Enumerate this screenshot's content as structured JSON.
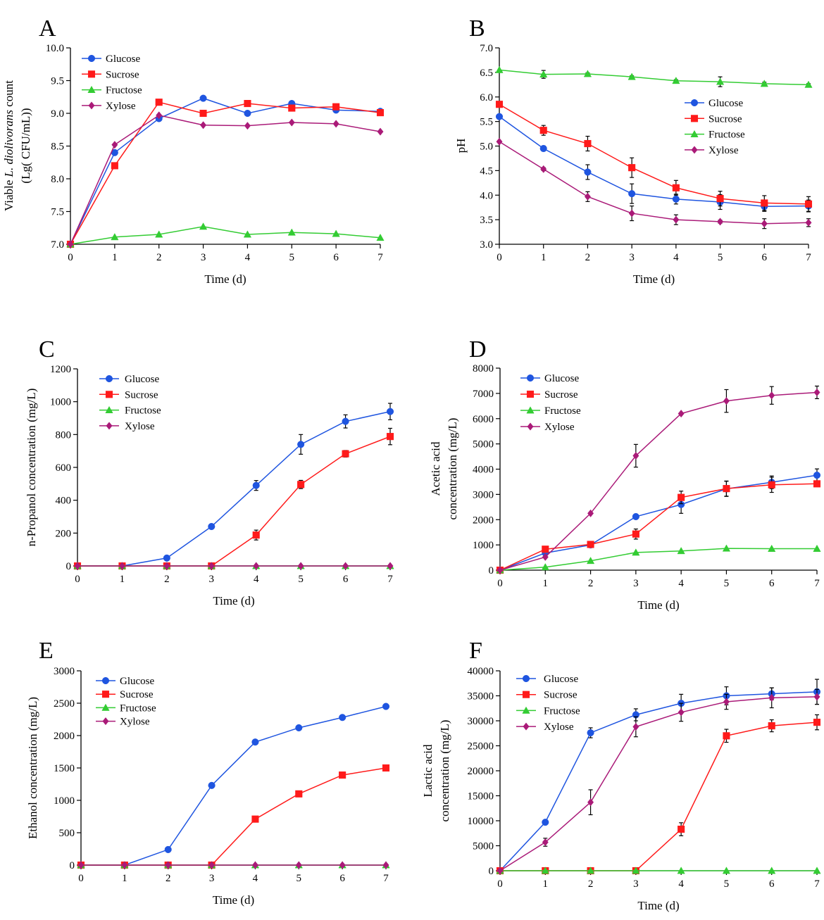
{
  "colors": {
    "Glucose": "#1f55e0",
    "Sucrose": "#ff1a1a",
    "Fructose": "#33cc33",
    "Xylose": "#aa1a78"
  },
  "chart_data": [
    {
      "panel": "A",
      "type": "line",
      "xlabel": "Time (d)",
      "ylabel": "Viable L. diolivorans count (Lg( CFU/mL))",
      "ylabel_lines": [
        [
          {
            "t": "Viable "
          },
          {
            "t": "L. diolivorans",
            "i": true
          },
          {
            "t": " count"
          }
        ],
        [
          {
            "t": "(Lg( CFU/mL))"
          }
        ]
      ],
      "x": [
        0,
        1,
        2,
        3,
        4,
        5,
        6,
        7
      ],
      "xlim": [
        0,
        7
      ],
      "ylim": [
        7.0,
        10.0
      ],
      "yticks": [
        7.0,
        7.5,
        8.0,
        8.5,
        9.0,
        9.5,
        10.0
      ],
      "ytick_labels": [
        "7.0",
        "7.5",
        "8.0",
        "8.5",
        "9.0",
        "9.5",
        "10.0"
      ],
      "legend_position": "top-left",
      "series": [
        {
          "name": "Glucose",
          "values": [
            7.0,
            8.4,
            8.92,
            9.23,
            9.0,
            9.15,
            9.05,
            9.03
          ],
          "errors": [
            0,
            0,
            0,
            0,
            0,
            0,
            0,
            0
          ]
        },
        {
          "name": "Sucrose",
          "values": [
            7.0,
            8.2,
            9.17,
            9.0,
            9.15,
            9.08,
            9.1,
            9.01
          ],
          "errors": [
            0,
            0,
            0,
            0,
            0,
            0,
            0,
            0
          ]
        },
        {
          "name": "Fructose",
          "values": [
            7.0,
            7.11,
            7.15,
            7.27,
            7.15,
            7.18,
            7.16,
            7.1
          ],
          "errors": [
            0,
            0,
            0,
            0,
            0,
            0,
            0,
            0
          ]
        },
        {
          "name": "Xylose",
          "values": [
            7.0,
            8.52,
            8.97,
            8.82,
            8.81,
            8.86,
            8.84,
            8.72
          ],
          "errors": [
            0,
            0,
            0,
            0,
            0,
            0,
            0,
            0
          ]
        }
      ]
    },
    {
      "panel": "B",
      "type": "line",
      "xlabel": "Time (d)",
      "ylabel": "pH",
      "ylabel_lines": [
        [
          {
            "t": "pH"
          }
        ]
      ],
      "x": [
        0,
        1,
        2,
        3,
        4,
        5,
        6,
        7
      ],
      "xlim": [
        0,
        7
      ],
      "ylim": [
        3.0,
        7.0
      ],
      "yticks": [
        3.0,
        3.5,
        4.0,
        4.5,
        5.0,
        5.5,
        6.0,
        6.5,
        7.0
      ],
      "ytick_labels": [
        "3.0",
        "3.5",
        "4.0",
        "4.5",
        "5.0",
        "5.5",
        "6.0",
        "6.5",
        "7.0"
      ],
      "legend_position": "center-right",
      "series": [
        {
          "name": "Glucose",
          "values": [
            5.6,
            4.95,
            4.47,
            4.03,
            3.92,
            3.86,
            3.77,
            3.78
          ],
          "errors": [
            0,
            0.05,
            0.15,
            0.2,
            0.1,
            0.15,
            0.1,
            0.12
          ]
        },
        {
          "name": "Sucrose",
          "values": [
            5.85,
            5.32,
            5.05,
            4.56,
            4.15,
            3.93,
            3.84,
            3.82
          ],
          "errors": [
            0,
            0.1,
            0.15,
            0.2,
            0.15,
            0.15,
            0.15,
            0.15
          ]
        },
        {
          "name": "Fructose",
          "values": [
            6.55,
            6.46,
            6.47,
            6.41,
            6.33,
            6.31,
            6.27,
            6.25
          ],
          "errors": [
            0,
            0.08,
            0.02,
            0.02,
            0.02,
            0.1,
            0.03,
            0.02
          ]
        },
        {
          "name": "Xylose",
          "values": [
            5.09,
            4.53,
            3.97,
            3.63,
            3.5,
            3.46,
            3.42,
            3.44
          ],
          "errors": [
            0,
            0.03,
            0.1,
            0.15,
            0.1,
            0.03,
            0.1,
            0.08
          ]
        }
      ]
    },
    {
      "panel": "C",
      "type": "line",
      "xlabel": "Time (d)",
      "ylabel": "n-Propanol concentration (mg/L)",
      "ylabel_lines": [
        [
          {
            "t": "n-Propanol concentration (mg/L)"
          }
        ]
      ],
      "x": [
        0,
        1,
        2,
        3,
        4,
        5,
        6,
        7
      ],
      "xlim": [
        0,
        7
      ],
      "ylim": [
        0,
        1200
      ],
      "yticks": [
        0,
        200,
        400,
        600,
        800,
        1000,
        1200
      ],
      "ytick_labels": [
        "0",
        "200",
        "400",
        "600",
        "800",
        "1000",
        "1200"
      ],
      "legend_position": "top-left",
      "series": [
        {
          "name": "Glucose",
          "values": [
            0,
            0,
            48,
            240,
            490,
            740,
            880,
            940
          ],
          "errors": [
            0,
            0,
            0,
            0,
            30,
            60,
            40,
            50
          ]
        },
        {
          "name": "Sucrose",
          "values": [
            0,
            0,
            0,
            0,
            188,
            496,
            683,
            788
          ],
          "errors": [
            0,
            0,
            0,
            0,
            30,
            25,
            20,
            50
          ]
        },
        {
          "name": "Fructose",
          "values": [
            0,
            0,
            0,
            0,
            0,
            0,
            0,
            0
          ],
          "errors": [
            0,
            0,
            0,
            0,
            0,
            0,
            0,
            0
          ]
        },
        {
          "name": "Xylose",
          "values": [
            0,
            0,
            0,
            0,
            0,
            0,
            0,
            0
          ],
          "errors": [
            0,
            0,
            0,
            0,
            0,
            0,
            0,
            0
          ]
        }
      ]
    },
    {
      "panel": "D",
      "type": "line",
      "xlabel": "Time (d)",
      "ylabel": "Acetic acid concentration (mg/L)",
      "ylabel_lines": [
        [
          {
            "t": "Acetic acid"
          }
        ],
        [
          {
            "t": "concentration (mg/L)"
          }
        ]
      ],
      "x": [
        0,
        1,
        2,
        3,
        4,
        5,
        6,
        7
      ],
      "xlim": [
        0,
        7
      ],
      "ylim": [
        0,
        8000
      ],
      "yticks": [
        0,
        1000,
        2000,
        3000,
        4000,
        5000,
        6000,
        7000,
        8000
      ],
      "ytick_labels": [
        "0",
        "1000",
        "2000",
        "3000",
        "4000",
        "5000",
        "6000",
        "7000",
        "8000"
      ],
      "legend_position": "top-left",
      "series": [
        {
          "name": "Glucose",
          "values": [
            0,
            680,
            1000,
            2120,
            2600,
            3220,
            3480,
            3760
          ],
          "errors": [
            0,
            0,
            0,
            0,
            350,
            300,
            250,
            250
          ]
        },
        {
          "name": "Sucrose",
          "values": [
            0,
            830,
            1020,
            1430,
            2880,
            3230,
            3380,
            3420
          ],
          "errors": [
            0,
            0,
            0,
            200,
            250,
            300,
            300,
            0
          ]
        },
        {
          "name": "Fructose",
          "values": [
            0,
            120,
            370,
            700,
            760,
            860,
            850,
            850
          ],
          "errors": [
            0,
            0,
            0,
            0,
            0,
            0,
            0,
            0
          ]
        },
        {
          "name": "Xylose",
          "values": [
            0,
            520,
            2250,
            4530,
            6200,
            6700,
            6920,
            7040
          ],
          "errors": [
            0,
            0,
            0,
            450,
            0,
            450,
            350,
            250
          ]
        }
      ]
    },
    {
      "panel": "E",
      "type": "line",
      "xlabel": "Time (d)",
      "ylabel": "Ethanol concentration (mg/L)",
      "ylabel_lines": [
        [
          {
            "t": "Ethanol concentration (mg/L)"
          }
        ]
      ],
      "x": [
        0,
        1,
        2,
        3,
        4,
        5,
        6,
        7
      ],
      "xlim": [
        0,
        7
      ],
      "ylim": [
        0,
        3000
      ],
      "yticks": [
        0,
        500,
        1000,
        1500,
        2000,
        2500,
        3000
      ],
      "ytick_labels": [
        "0",
        "500",
        "1000",
        "1500",
        "2000",
        "2500",
        "3000"
      ],
      "legend_position": "top-left",
      "series": [
        {
          "name": "Glucose",
          "values": [
            0,
            0,
            240,
            1230,
            1900,
            2120,
            2280,
            2450
          ],
          "errors": [
            0,
            0,
            0,
            0,
            0,
            0,
            0,
            0
          ]
        },
        {
          "name": "Sucrose",
          "values": [
            0,
            0,
            0,
            0,
            710,
            1100,
            1390,
            1500
          ],
          "errors": [
            0,
            0,
            0,
            0,
            0,
            0,
            0,
            0
          ]
        },
        {
          "name": "Fructose",
          "values": [
            0,
            0,
            0,
            0,
            0,
            0,
            0,
            0
          ],
          "errors": [
            0,
            0,
            0,
            0,
            0,
            0,
            0,
            0
          ]
        },
        {
          "name": "Xylose",
          "values": [
            0,
            0,
            0,
            0,
            0,
            0,
            0,
            0
          ],
          "errors": [
            0,
            0,
            0,
            0,
            0,
            0,
            0,
            0
          ]
        }
      ]
    },
    {
      "panel": "F",
      "type": "line",
      "xlabel": "Time (d)",
      "ylabel": "Lactic acid concentration (mg/L)",
      "ylabel_lines": [
        [
          {
            "t": "Lactic acid"
          }
        ],
        [
          {
            "t": "concentration (mg/L)"
          }
        ]
      ],
      "x": [
        0,
        1,
        2,
        3,
        4,
        5,
        6,
        7
      ],
      "xlim": [
        0,
        7
      ],
      "ylim": [
        0,
        40000
      ],
      "yticks": [
        0,
        5000,
        10000,
        15000,
        20000,
        25000,
        30000,
        35000,
        40000
      ],
      "ytick_labels": [
        "0",
        "5000",
        "10000",
        "15000",
        "20000",
        "25000",
        "30000",
        "35000",
        "40000"
      ],
      "legend_position": "top-left",
      "series": [
        {
          "name": "Glucose",
          "values": [
            0,
            9700,
            27600,
            31200,
            33500,
            35000,
            35400,
            35800
          ],
          "errors": [
            0,
            0,
            1000,
            1200,
            1800,
            1800,
            1200,
            2500
          ]
        },
        {
          "name": "Sucrose",
          "values": [
            0,
            0,
            0,
            0,
            8300,
            27000,
            29000,
            29700
          ],
          "errors": [
            0,
            0,
            0,
            0,
            1300,
            1300,
            1200,
            1500
          ]
        },
        {
          "name": "Fructose",
          "values": [
            0,
            0,
            0,
            0,
            0,
            0,
            0,
            0
          ],
          "errors": [
            0,
            0,
            0,
            0,
            0,
            0,
            0,
            0
          ]
        },
        {
          "name": "Xylose",
          "values": [
            0,
            5700,
            13700,
            28800,
            31700,
            33800,
            34600,
            34800
          ],
          "errors": [
            0,
            800,
            2500,
            2000,
            1800,
            1500,
            2000,
            1500
          ]
        }
      ]
    }
  ]
}
